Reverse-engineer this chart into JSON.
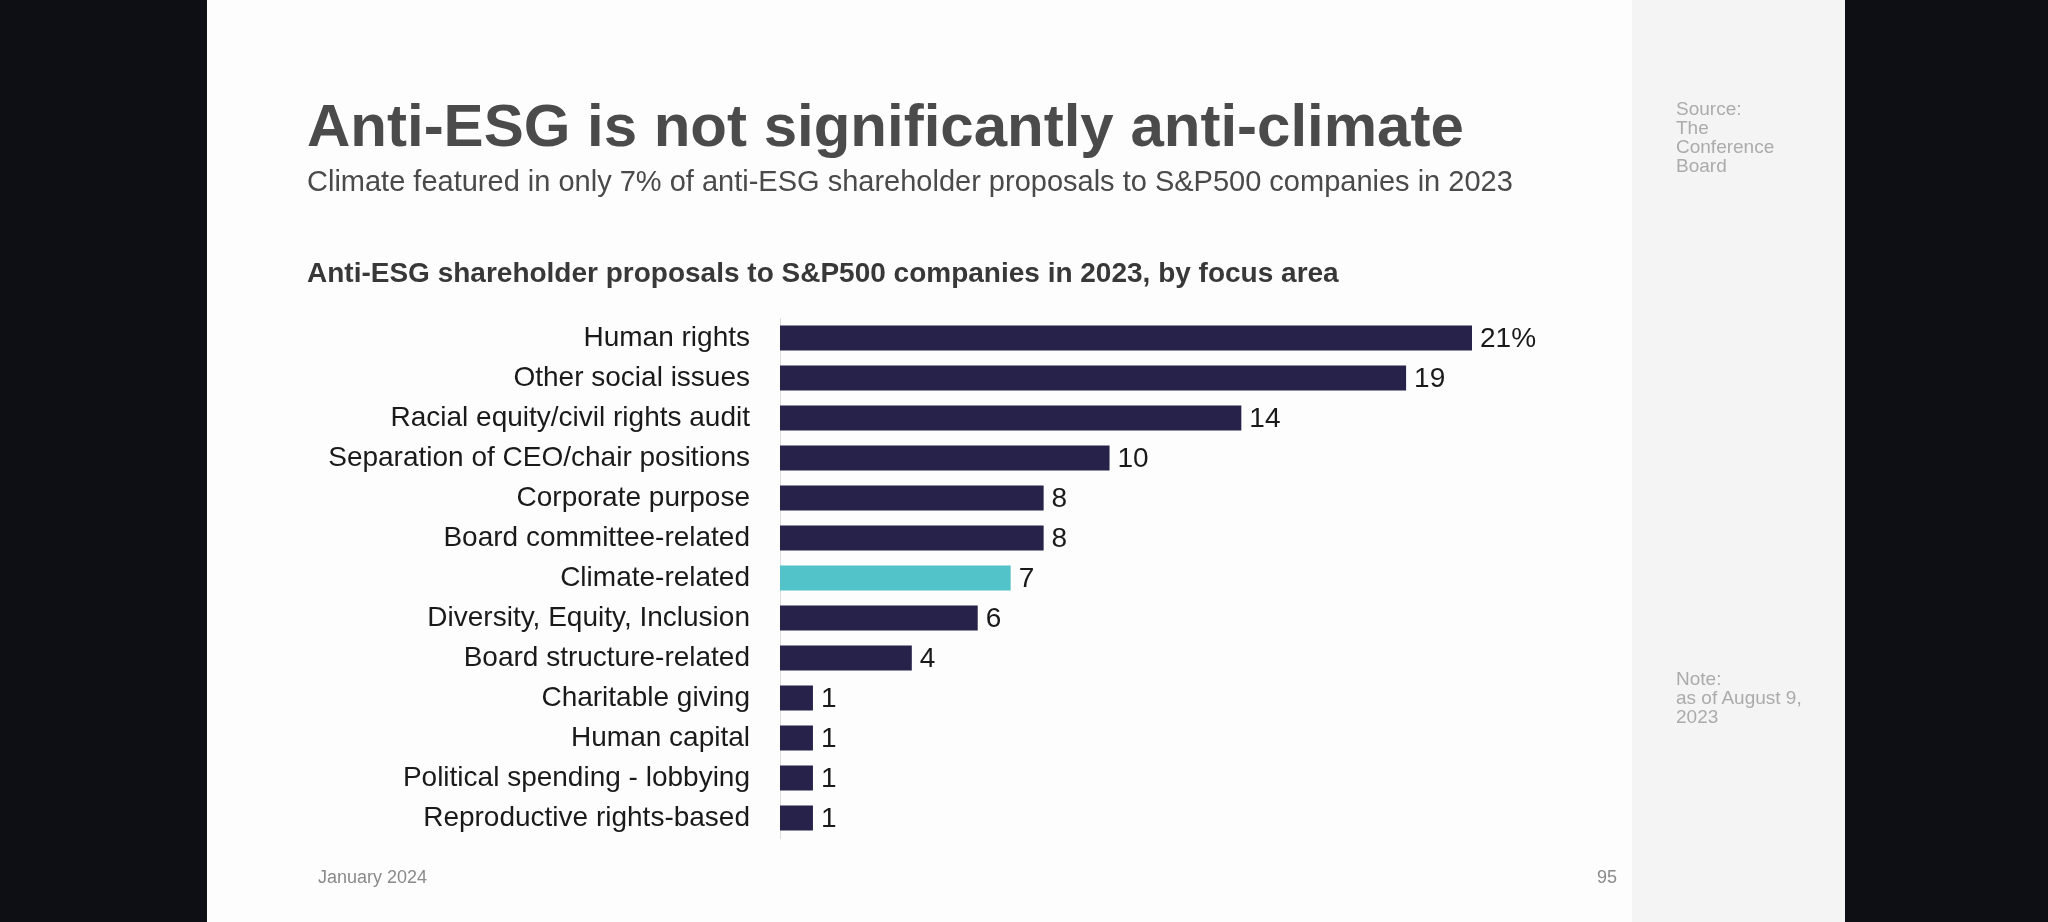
{
  "chart_data": {
    "type": "bar",
    "orientation": "horizontal",
    "title": "Anti-ESG is not significantly anti-climate",
    "subtitle": "Climate featured in only 7% of anti-ESG shareholder proposals to S&P500 companies in 2023",
    "categories": [
      "Human rights",
      "Other social issues",
      "Racial equity/civil rights audit",
      "Separation of CEO/chair positions",
      "Corporate purpose",
      "Board committee-related",
      "Climate-related",
      "Diversity, Equity, Inclusion",
      "Board structure-related",
      "Charitable giving",
      "Human capital",
      "Political spending - lobbying",
      "Reproductive rights-based"
    ],
    "values": [
      21,
      19,
      14,
      10,
      8,
      8,
      7,
      6,
      4,
      1,
      1,
      1,
      1
    ],
    "colors": [
      "#262249",
      "#262249",
      "#262249",
      "#262249",
      "#262249",
      "#262249",
      "#52c3c9",
      "#262249",
      "#262249",
      "#262249",
      "#262249",
      "#262249",
      "#262249"
    ],
    "value_labels": [
      "21%",
      "19",
      "14",
      "10",
      "8",
      "8",
      "7",
      "6",
      "4",
      "1",
      "1",
      "1",
      "1"
    ],
    "annotations": [
      "Anti-ESG shareholder proposals to S&P500 companies in 2023, by focus area",
      "Source:\nThe Conference Board",
      "Note:\nas of August 9, 2023",
      "January 2024",
      "95"
    ]
  }
}
